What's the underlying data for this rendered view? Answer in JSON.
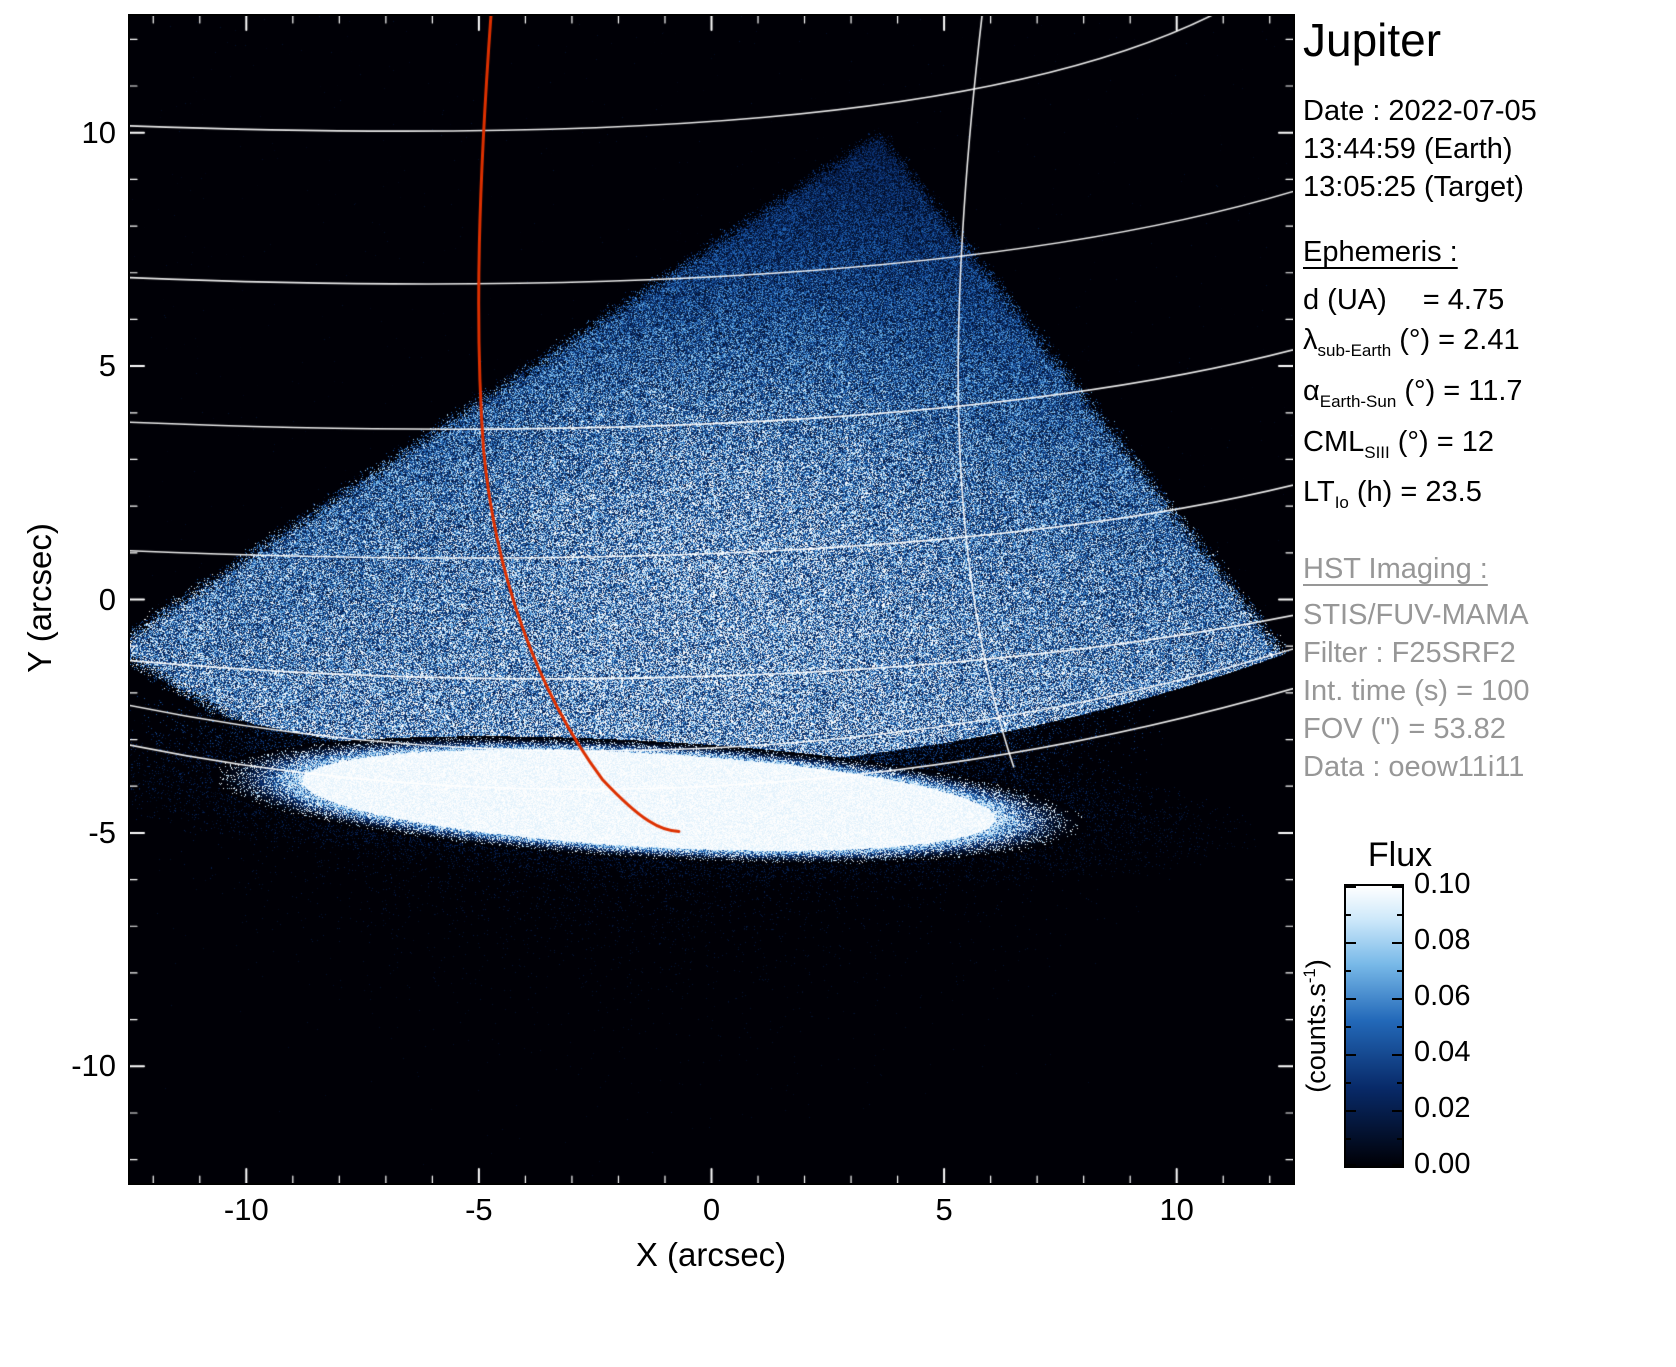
{
  "sidebar": {
    "title": "Jupiter",
    "observation": [
      "Date : 2022-07-05",
      "13:44:59 (Earth)",
      "13:05:25 (Target)"
    ],
    "ephemeris_heading": "Ephemeris :",
    "ephemeris": [
      {
        "base": "d (UA)",
        "sub": "",
        "rest": "= 4.75",
        "pad": 36
      },
      {
        "base": "λ",
        "sub": "sub-Earth",
        "rest": "(°) = 2.41",
        "pad": 8
      },
      {
        "base": "α",
        "sub": "Earth-Sun",
        "rest": "(°) = 11.7",
        "pad": 8
      },
      {
        "base": "CML",
        "sub": "SIII",
        "rest": "(°) = 12",
        "pad": 8
      },
      {
        "base": "LT",
        "sub": "Io",
        "rest": "(h) = 23.5",
        "pad": 8
      }
    ],
    "hst_heading": "HST Imaging :",
    "hst_lines": [
      "STIS/FUV-MAMA",
      "Filter : F25SRF2",
      "Int. time (s) = 100",
      "FOV (\") = 53.82",
      "Data : oeow11i11"
    ]
  },
  "chart_data": {
    "type": "heatmap",
    "title": "Jupiter",
    "xlabel": "X (arcsec)",
    "ylabel": "Y (arcsec)",
    "xlim": [
      -12.5,
      12.5
    ],
    "ylim": [
      -12.5,
      12.5
    ],
    "xticks": [
      -10,
      -5,
      0,
      5,
      10
    ],
    "xtick_labels": [
      "-10",
      "-5",
      "0",
      "5",
      "10"
    ],
    "yticks": [
      10,
      5,
      0,
      -5,
      -10
    ],
    "ytick_labels": [
      "10",
      "5",
      "0",
      "-5",
      "-10"
    ],
    "grid": false,
    "background": "#000000",
    "colormap_stops": [
      {
        "t": 0.0,
        "c": "#000006"
      },
      {
        "t": 0.28,
        "c": "#082a69"
      },
      {
        "t": 0.52,
        "c": "#2369b9"
      },
      {
        "t": 0.72,
        "c": "#78b9e8"
      },
      {
        "t": 0.88,
        "c": "#cde8fa"
      },
      {
        "t": 1.0,
        "c": "#ffffff"
      }
    ],
    "colorbar": {
      "title": "Flux",
      "unit_pre": "(counts.s",
      "unit_sup": "-1",
      "unit_post": ")",
      "vmin": 0.0,
      "vmax": 0.1,
      "tick_labels": [
        "0.10",
        "0.08",
        "0.06",
        "0.04",
        "0.02",
        "0.00"
      ]
    },
    "features": {
      "grid_color": "#ffffff",
      "fov_polygon": [
        [
          3.6,
          9.95
        ],
        [
          13.6,
          -2.8
        ],
        [
          0.3,
          -8.8
        ],
        [
          -12.9,
          -1.05
        ]
      ],
      "auroral_band_ellipse": {
        "cx": -1.35,
        "cy": -4.3,
        "rx": 7.45,
        "ry": 1.0,
        "angle_deg": -3.2
      },
      "grid_curves": [
        {
          "p0": [
            -12.6,
            10.15
          ],
          "c1": [
            -3,
            9.8
          ],
          "c2": [
            6.5,
            10.1
          ],
          "p1": [
            11.3,
            12.8
          ]
        },
        {
          "p0": [
            -12.6,
            6.9
          ],
          "c1": [
            -3,
            6.5
          ],
          "c2": [
            6.5,
            6.9
          ],
          "p1": [
            12.7,
            8.8
          ]
        },
        {
          "p0": [
            -12.6,
            3.8
          ],
          "c1": [
            -3,
            3.4
          ],
          "c2": [
            6.5,
            3.75
          ],
          "p1": [
            12.7,
            5.4
          ]
        },
        {
          "p0": [
            -12.6,
            1.05
          ],
          "c1": [
            -3,
            0.65
          ],
          "c2": [
            6.5,
            0.95
          ],
          "p1": [
            12.7,
            2.5
          ]
        },
        {
          "p0": [
            -12.6,
            -1.3
          ],
          "c1": [
            -4,
            -2.05
          ],
          "c2": [
            5.5,
            -1.75
          ],
          "p1": [
            12.7,
            -0.3
          ]
        },
        {
          "p0": [
            -12.6,
            -2.25
          ],
          "c1": [
            -4.5,
            -3.9
          ],
          "c2": [
            4.5,
            -3.5
          ],
          "p1": [
            12.7,
            -1.0
          ]
        },
        {
          "p0": [
            -12.6,
            -3.1
          ],
          "c1": [
            -4.5,
            -4.75
          ],
          "c2": [
            4.5,
            -4.25
          ],
          "p1": [
            12.7,
            -1.85
          ]
        },
        {
          "p0": [
            5.85,
            12.8
          ],
          "c1": [
            5.1,
            6.5
          ],
          "c2": [
            4.95,
            1.0
          ],
          "p1": [
            6.5,
            -3.6
          ]
        }
      ],
      "io_footprint_color": "#dd3000",
      "io_footprint_curve": [
        {
          "p0": [
            -4.72,
            12.8
          ],
          "c1": [
            -5.0,
            9.0
          ],
          "c2": [
            -5.1,
            6.0
          ],
          "p1": [
            -4.9,
            3.2
          ]
        },
        {
          "p0": [
            -4.9,
            3.2
          ],
          "c1": [
            -4.65,
            0.6
          ],
          "c2": [
            -3.8,
            -1.9
          ],
          "p1": [
            -2.35,
            -3.85
          ]
        },
        {
          "p0": [
            -2.35,
            -3.85
          ],
          "c1": [
            -1.5,
            -4.75
          ],
          "c2": [
            -1.1,
            -4.95
          ],
          "p1": [
            -0.7,
            -4.97
          ]
        }
      ]
    }
  }
}
